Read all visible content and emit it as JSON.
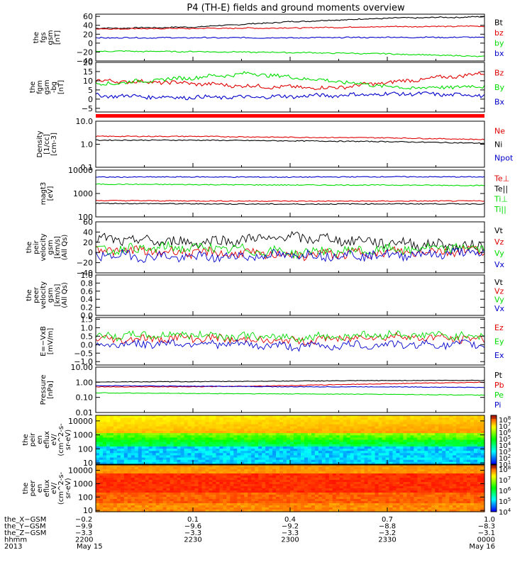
{
  "title": "P4 (TH-E) fields and ground moments overview",
  "colors": {
    "black": "#000000",
    "red": "#e00000",
    "green": "#00dd00",
    "blue": "#0000cc",
    "bar_red": "#ff0000"
  },
  "chart_data": [
    {
      "type": "line",
      "name": "fgs",
      "ylabel": [
        "the",
        "fgs",
        "gsm",
        "[nT]"
      ],
      "ylim": [
        -40,
        65
      ],
      "yticks": [
        "60",
        "40",
        "20",
        "0",
        "−20",
        "−40"
      ],
      "ytick_values": [
        60,
        40,
        20,
        0,
        -20,
        -40
      ],
      "series": [
        {
          "name": "Bt",
          "color": "black",
          "start": [
            33,
            36,
            48,
            56,
            59
          ]
        },
        {
          "name": "bz",
          "color": "red",
          "start": [
            32,
            33,
            34,
            37,
            38
          ]
        },
        {
          "name": "by",
          "color": "blue",
          "start": [
            12,
            12,
            12,
            13,
            13
          ]
        },
        {
          "name": "bx",
          "color": "green",
          "start": [
            -18,
            -19,
            -21,
            -24,
            -30
          ]
        }
      ],
      "legend_colors": [
        "black",
        "red",
        "green",
        "blue"
      ],
      "legend": [
        "Bt",
        "bz",
        "by",
        "bx"
      ]
    },
    {
      "type": "line",
      "name": "fgm_gse",
      "ylabel": [
        "the",
        "fgm",
        "gsm",
        "-bg",
        "[nT]"
      ],
      "ylim": [
        -7,
        20
      ],
      "yticks": [
        "20",
        "15",
        "10",
        "5",
        "0",
        "−5"
      ],
      "ytick_values": [
        20,
        15,
        10,
        5,
        0,
        -5
      ],
      "series": [
        {
          "name": "Bz",
          "color": "red",
          "start": [
            10,
            9,
            7,
            6,
            10,
            14
          ]
        },
        {
          "name": "By",
          "color": "green",
          "start": [
            8,
            11,
            14,
            10,
            6,
            7
          ]
        },
        {
          "name": "Bx",
          "color": "blue",
          "start": [
            2,
            1,
            1,
            2,
            3,
            2
          ]
        }
      ],
      "legend_colors": [
        "red",
        "green",
        "blue"
      ],
      "legend": [
        "Bz",
        "By",
        "Bx"
      ]
    },
    {
      "type": "line",
      "name": "density",
      "log": true,
      "ylabel": [
        "Density",
        "[1/cc]",
        "[cm-3]"
      ],
      "ylim": [
        0.1,
        10
      ],
      "yticks": [
        "10.0",
        "1.0",
        "0.1"
      ],
      "ytick_values": [
        10,
        1,
        0.1
      ],
      "series": [
        {
          "name": "Ne",
          "color": "red",
          "start": [
            2.2,
            2.2,
            2.0,
            1.9,
            1.6
          ]
        },
        {
          "name": "Ni",
          "color": "black",
          "start": [
            1.5,
            1.5,
            1.4,
            1.3,
            1.1
          ]
        }
      ],
      "legend_colors": [
        "red",
        "black",
        "blue"
      ],
      "legend": [
        "Ne",
        "Ni",
        "Npot"
      ]
    },
    {
      "type": "line",
      "name": "temperature",
      "log": true,
      "ylabel": [
        "magt3",
        "[eV]"
      ],
      "ylim": [
        100,
        10000
      ],
      "yticks": [
        "10000",
        "1000",
        "100"
      ],
      "ytick_values": [
        10000,
        1000,
        100
      ],
      "series": [
        {
          "name": "Te⊥",
          "color": "blue",
          "start": [
            5000,
            5100,
            5000,
            5200,
            5100
          ]
        },
        {
          "name": "Ti⊥",
          "color": "green",
          "start": [
            2500,
            2400,
            2300,
            2300,
            2200
          ]
        },
        {
          "name": "Te||",
          "color": "red",
          "start": [
            500,
            480,
            470,
            470,
            480
          ]
        },
        {
          "name": "Ti||",
          "color": "black",
          "start": [
            380,
            360,
            350,
            360,
            360
          ]
        }
      ],
      "legend_colors": [
        "red",
        "black",
        "green",
        "green"
      ],
      "legend": [
        "Te⊥",
        "Te||",
        "Ti⊥",
        "Ti||"
      ]
    },
    {
      "type": "line",
      "name": "peir_velocity",
      "ylabel": [
        "the",
        "peir",
        "velocity",
        "gsm",
        "[km/s]",
        "(All Qs)"
      ],
      "ylim": [
        -40,
        60
      ],
      "yticks": [
        "60",
        "40",
        "20",
        "0",
        "−20",
        "−40"
      ],
      "ytick_values": [
        60,
        40,
        20,
        0,
        -20,
        -40
      ],
      "series": [
        {
          "name": "Vt",
          "color": "black",
          "start": [
            25,
            20,
            30,
            20,
            10
          ]
        },
        {
          "name": "Vz",
          "color": "red",
          "start": [
            5,
            0,
            -5,
            0,
            5
          ]
        },
        {
          "name": "Vy",
          "color": "green",
          "start": [
            5,
            10,
            0,
            5,
            10
          ]
        },
        {
          "name": "Vx",
          "color": "blue",
          "start": [
            -5,
            -10,
            -5,
            -5,
            0
          ]
        }
      ],
      "legend_colors": [
        "black",
        "red",
        "green",
        "blue"
      ],
      "legend": [
        "Vt",
        "Vz",
        "Vy",
        "Vx"
      ]
    },
    {
      "type": "line",
      "name": "peer_velocity",
      "ylabel": [
        "the",
        "peer",
        "velocity",
        "gsm",
        "[km/s]",
        "(All Qs)"
      ],
      "ylim": [
        0,
        1
      ],
      "yticks": [
        "1.0",
        "0.8",
        "0.6",
        "0.4",
        "0.2",
        "0.0"
      ],
      "ytick_values": [
        1,
        0.8,
        0.6,
        0.4,
        0.2,
        0
      ],
      "series": [],
      "legend_colors": [
        "black",
        "red",
        "green",
        "blue"
      ],
      "legend": [
        "Vt",
        "Vz",
        "Vy",
        "Vx"
      ]
    },
    {
      "type": "line",
      "name": "efield",
      "ylabel": [
        "E=−VxB",
        "[mV/m]"
      ],
      "ylim": [
        -1.2,
        1.6
      ],
      "yticks": [
        "1.5",
        "1.0",
        "0.5",
        "0.0",
        "−0.5",
        "−1.0"
      ],
      "ytick_values": [
        1.5,
        1,
        0.5,
        0,
        -0.5,
        -1
      ],
      "series": [
        {
          "name": "Ez",
          "color": "red",
          "start": [
            0.3,
            0.4,
            0.2,
            0.5,
            0.3
          ]
        },
        {
          "name": "Ey",
          "color": "green",
          "start": [
            0.5,
            0.6,
            0.4,
            0.6,
            0.5
          ]
        },
        {
          "name": "Ex",
          "color": "blue",
          "start": [
            0.0,
            0.1,
            -0.1,
            0.0,
            0.0
          ]
        }
      ],
      "legend_colors": [
        "red",
        "green",
        "blue"
      ],
      "legend": [
        "Ez",
        "Ey",
        "Ex"
      ]
    },
    {
      "type": "line",
      "name": "pressure",
      "log": true,
      "ylabel": [
        "Pressure",
        "[nPa]"
      ],
      "ylim": [
        0.01,
        10
      ],
      "yticks": [
        "10.00",
        "1.00",
        "0.10",
        "0.01"
      ],
      "ytick_values": [
        10,
        1,
        0.1,
        0.01
      ],
      "series": [
        {
          "name": "Pt",
          "color": "black",
          "start": [
            1.05,
            1.1,
            1.2,
            1.3,
            1.35
          ]
        },
        {
          "name": "Pb",
          "color": "red",
          "start": [
            0.5,
            0.5,
            0.6,
            0.8,
            1.0
          ]
        },
        {
          "name": "Pi",
          "color": "blue",
          "start": [
            0.6,
            0.55,
            0.5,
            0.5,
            0.45
          ]
        },
        {
          "name": "Pe",
          "color": "green",
          "start": [
            0.2,
            0.18,
            0.17,
            0.16,
            0.14
          ]
        }
      ],
      "legend_colors": [
        "black",
        "red",
        "green",
        "blue"
      ],
      "legend": [
        "Pt",
        "Pb",
        "Pe",
        "Pi"
      ]
    },
    {
      "type": "heatmap",
      "name": "peir_eflux",
      "log": true,
      "ylabel": [
        "the",
        "peir",
        "en",
        "eflux",
        "eV/",
        "(cm^2-s-",
        "sr-eV)"
      ],
      "ylim": [
        8,
        25000
      ],
      "yticks": [
        "10000",
        "1000",
        "100",
        "10"
      ],
      "ytick_values": [
        10000,
        1000,
        100,
        10
      ],
      "colorbar": [
        "10^8",
        "10^7",
        "10^6",
        "10^5",
        "10^4",
        "10^3",
        "10^2",
        "10^1"
      ]
    },
    {
      "type": "heatmap",
      "name": "peer_eflux",
      "log": true,
      "ylabel": [
        "the",
        "peer",
        "en",
        "eflux",
        "eV/",
        "(cm^2-s-",
        "sr-eV)"
      ],
      "ylim": [
        8,
        25000
      ],
      "yticks": [
        "10000",
        "1000",
        "100",
        "10"
      ],
      "ytick_values": [
        10000,
        1000,
        100,
        10
      ],
      "colorbar": [
        "10^8",
        "10^7",
        "10^6",
        "10^5",
        "10^4"
      ]
    }
  ],
  "x_axis": {
    "rows": [
      {
        "label": "the_X−GSM",
        "values": [
          "−0.2",
          "0.1",
          "0.4",
          "0.7",
          "1.0"
        ]
      },
      {
        "label": "the_Y−GSM",
        "values": [
          "−9.9",
          "−9.6",
          "−9.2",
          "−8.8",
          "−8.3"
        ]
      },
      {
        "label": "the_Z−GSM",
        "values": [
          "−3.3",
          "−3.3",
          "−3.3",
          "−3.2",
          "−3.1"
        ]
      },
      {
        "label": "hhmm",
        "values": [
          "2200",
          "2230",
          "2300",
          "2330",
          "0000"
        ]
      }
    ],
    "year": "2013",
    "date_start": "May 15",
    "date_end": "May 16"
  }
}
